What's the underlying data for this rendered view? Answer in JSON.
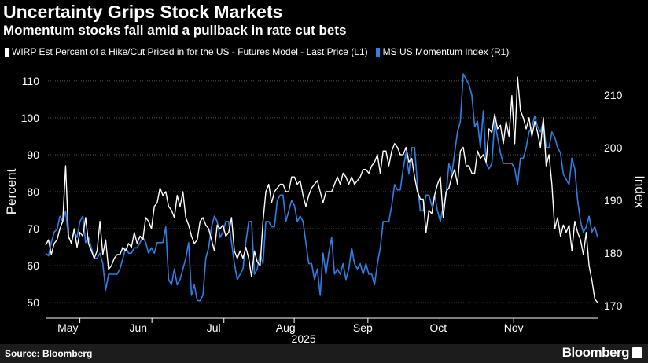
{
  "header": {
    "title": "Uncertainty Grips Stock Markets",
    "subtitle": "Momentum stocks fall amid a pullback in rate cut bets"
  },
  "colors": {
    "wirp": "#ffffff",
    "momentum": "#2f7fe6",
    "grid": "#555555",
    "axis": "#ffffff"
  },
  "footer": {
    "source": "Source: Bloomberg",
    "brand": "Bloomberg"
  },
  "chart_data": {
    "type": "line",
    "title": "Uncertainty Grips Stock Markets",
    "subtitle": "Momentum stocks fall amid a pullback in rate cut bets",
    "xlabel": "2025",
    "ylabel_left": "Percent",
    "ylabel_right": "Index",
    "ylim_left": [
      46,
      114
    ],
    "yticks_left": [
      50,
      60,
      70,
      80,
      90,
      100,
      110
    ],
    "ylim_right": [
      167.8,
      215.5
    ],
    "yticks_right": [
      170,
      180,
      190,
      200,
      210
    ],
    "x_range": [
      0,
      161
    ],
    "x_ticks": [
      {
        "label": "May",
        "pos": 6.5
      },
      {
        "label": "Jun",
        "pos": 27
      },
      {
        "label": "Jul",
        "pos": 49
      },
      {
        "label": "Aug",
        "pos": 70
      },
      {
        "label": "Sep",
        "pos": 92.5
      },
      {
        "label": "Oct",
        "pos": 114.5
      },
      {
        "label": "Nov",
        "pos": 136.5
      }
    ],
    "month_boundaries": [
      10,
      31,
      52,
      72.5,
      94,
      115,
      136.5
    ],
    "year_label": "2025",
    "grid": true,
    "legend_position": "top-left",
    "series": [
      {
        "name": "WIRP Est Percent of a Hike/Cut Priced in for the US - Futures Model - Last Price (L1)",
        "axis": "left",
        "color": "#ffffff",
        "values": [
          65.5,
          67,
          63,
          66,
          67,
          70,
          72,
          87,
          68,
          66,
          70,
          65,
          69,
          68,
          73,
          66,
          64,
          62,
          64,
          72,
          63,
          67,
          59,
          60,
          62,
          63,
          63,
          65,
          64,
          66,
          65,
          69,
          66,
          68,
          67,
          73,
          72,
          70,
          76,
          77,
          81,
          79,
          80,
          76,
          75,
          73,
          79,
          76,
          80,
          73,
          71,
          68,
          66,
          67,
          72,
          73,
          71,
          70,
          67,
          64,
          71,
          70,
          71,
          68,
          69,
          73,
          64,
          62,
          64,
          62,
          65,
          62,
          57,
          64,
          61,
          60,
          72,
          80,
          82,
          77,
          80,
          81,
          82,
          82,
          80,
          80,
          84,
          84,
          82,
          83,
          79,
          76,
          79,
          81,
          82,
          83,
          80,
          77,
          80,
          80,
          80,
          82,
          84,
          82,
          85,
          84,
          82,
          84,
          82,
          83,
          84,
          86,
          86,
          85,
          87,
          88,
          90,
          85,
          91,
          91,
          87,
          91,
          93,
          92,
          90,
          90,
          92,
          88,
          89,
          84,
          80,
          78,
          78,
          69,
          75,
          74,
          79,
          82,
          84,
          73,
          80,
          81,
          84,
          86,
          82,
          91,
          92,
          87,
          87,
          85,
          85,
          91,
          89,
          90,
          88,
          97,
          96,
          101,
          97,
          98,
          93,
          99,
          95,
          106,
          93,
          111,
          102,
          100,
          97,
          100,
          95,
          99,
          96,
          92,
          100,
          87,
          90,
          82,
          70,
          73,
          68,
          71,
          69,
          71,
          64,
          72,
          69,
          67,
          63,
          69,
          60,
          56,
          51,
          50
        ]
      },
      {
        "name": "MS US Momentum Index (R1)",
        "axis": "right",
        "color": "#2f7fe6",
        "values": [
          180,
          179.5,
          182,
          184,
          184.5,
          187,
          186,
          188,
          183,
          182,
          184,
          183,
          186,
          187,
          182,
          183,
          181,
          179,
          179,
          180,
          178,
          173,
          176,
          176,
          176,
          176,
          177,
          179,
          181,
          180,
          180,
          181,
          181,
          182,
          183,
          182,
          180,
          181,
          180,
          182,
          182,
          182,
          185,
          175,
          174,
          177,
          174,
          175,
          177,
          179,
          182,
          172,
          174,
          171,
          171,
          172,
          179,
          181,
          185,
          187,
          186,
          183,
          184,
          186,
          186,
          182,
          178,
          175,
          176,
          177,
          182,
          186,
          186,
          176,
          177,
          180,
          178,
          186,
          186,
          185,
          185,
          190,
          191,
          191,
          186,
          188,
          190,
          189,
          186,
          187,
          186,
          182,
          178,
          178,
          175,
          177,
          172,
          180,
          176,
          180,
          183,
          176,
          177,
          176,
          178,
          175,
          177,
          181,
          178,
          177,
          178,
          176,
          178,
          176,
          176,
          174,
          178,
          181,
          186,
          186,
          186,
          189,
          193,
          192,
          192,
          196,
          199,
          195,
          200,
          200,
          193,
          188,
          188,
          191,
          191,
          189,
          191,
          188,
          186,
          189,
          191,
          197,
          195,
          199,
          203,
          205,
          214,
          213,
          212,
          210,
          204,
          205,
          200,
          207,
          197,
          196,
          197,
          205,
          202,
          199,
          197,
          197,
          197,
          197,
          196,
          193,
          198,
          198,
          200,
          203,
          204,
          206,
          204,
          203,
          205,
          200,
          200,
          203,
          202,
          200,
          199,
          195,
          194,
          193,
          198,
          196,
          190,
          186,
          184,
          185,
          187,
          184,
          185,
          183
        ]
      }
    ]
  }
}
